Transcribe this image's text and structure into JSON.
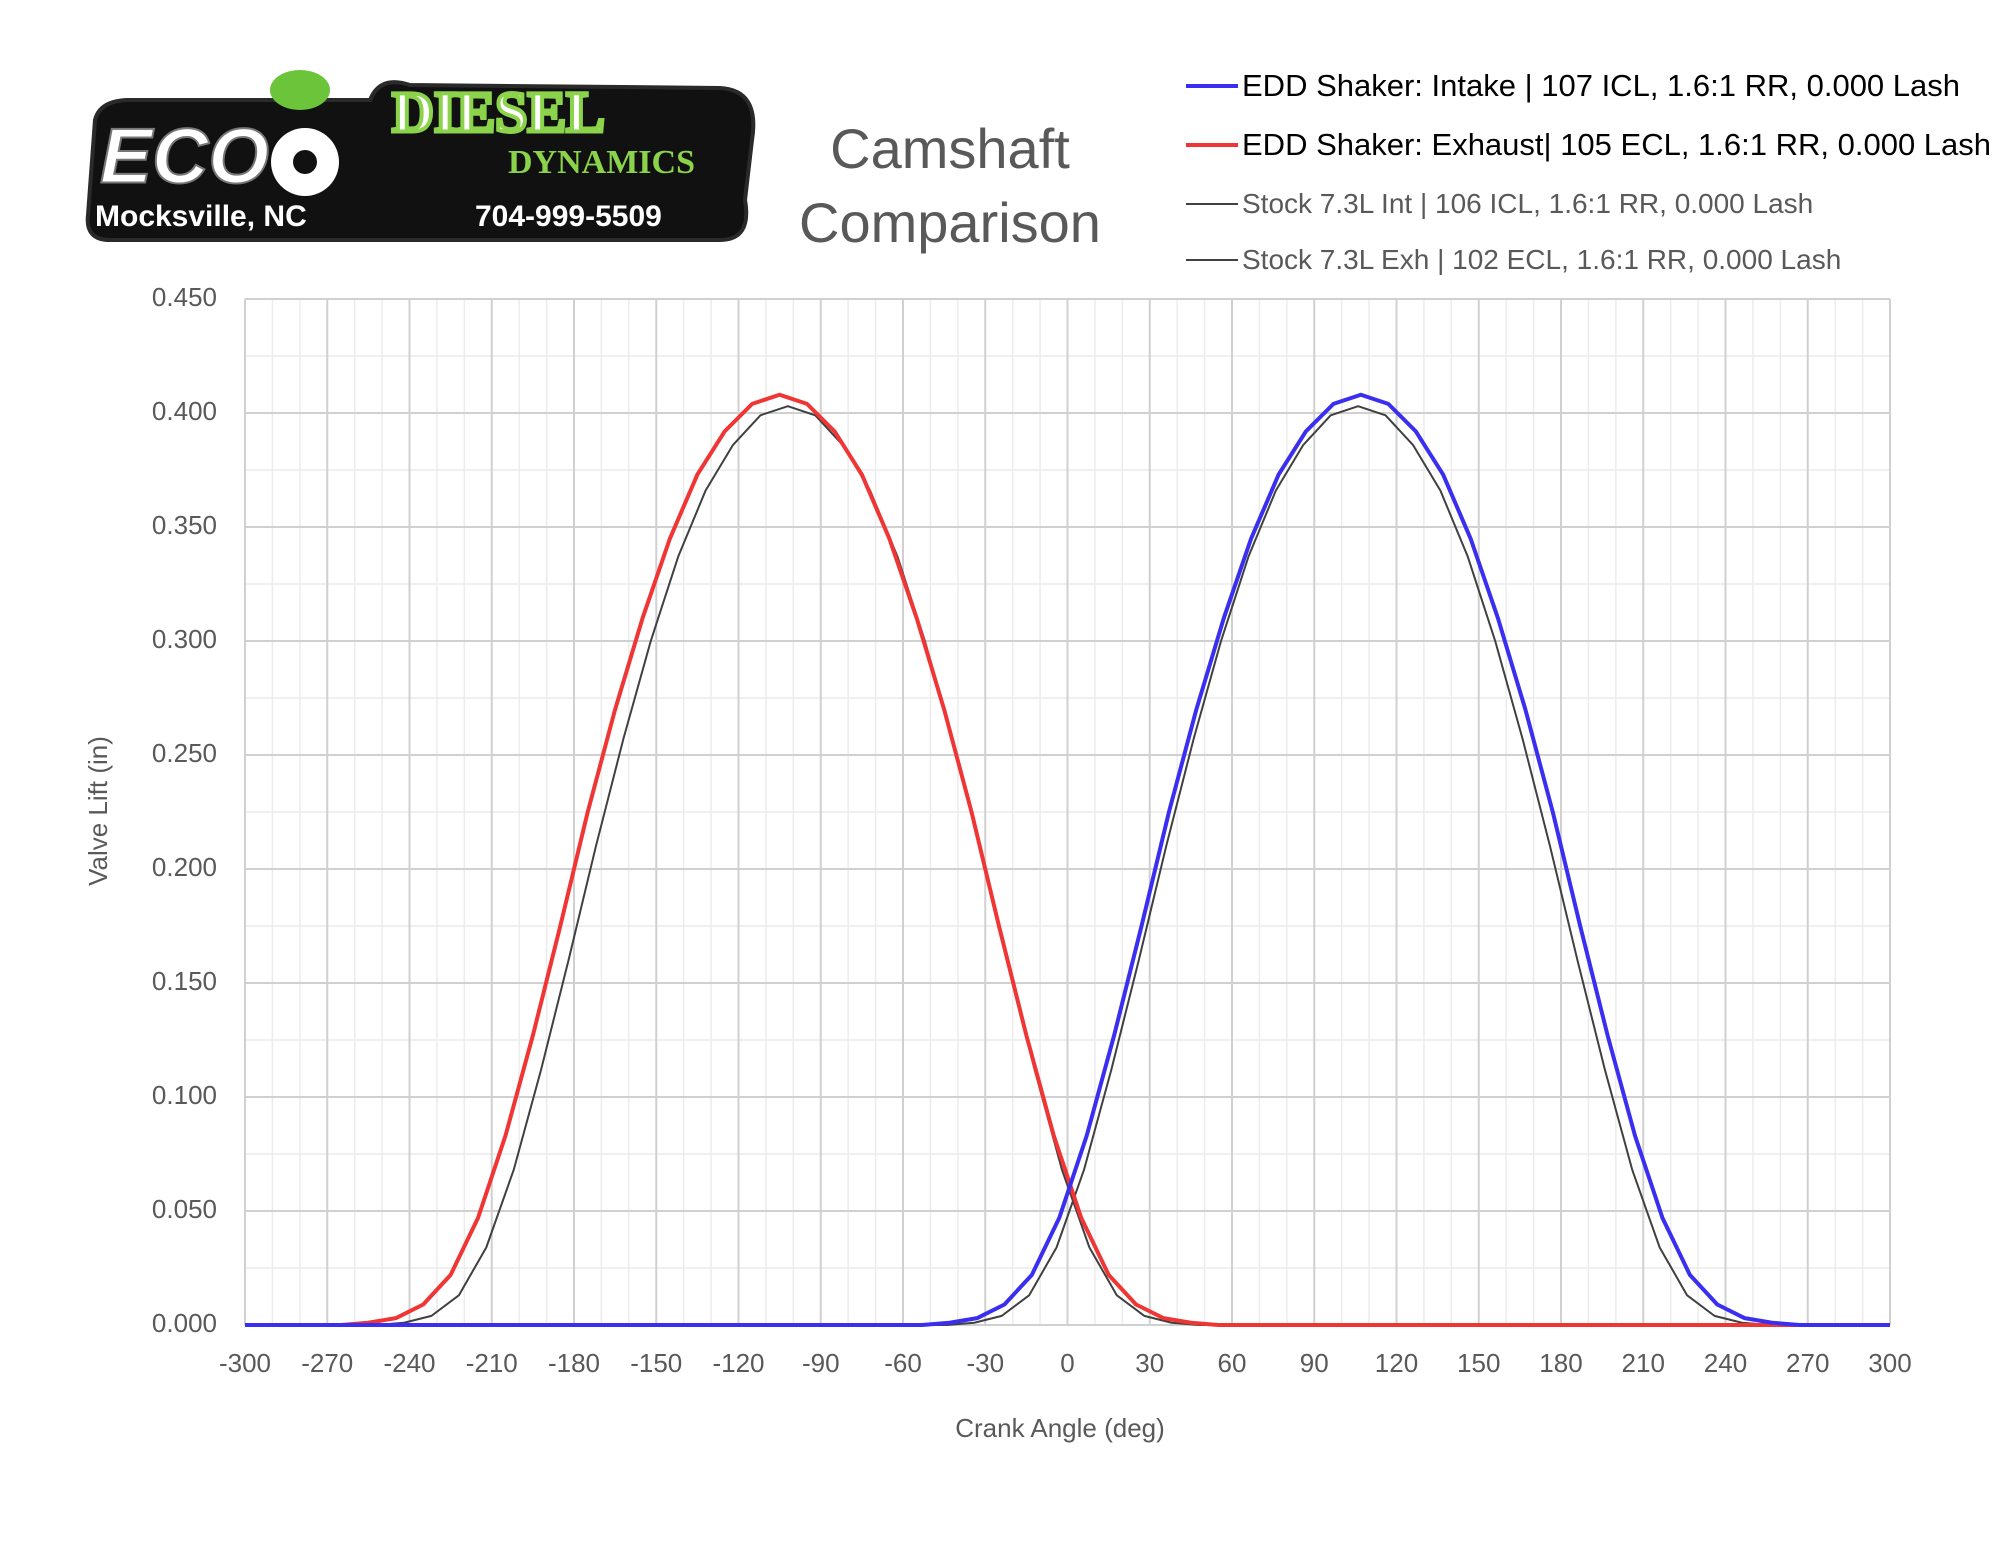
{
  "logo": {
    "brand": "ECO",
    "word1": "DIESEL",
    "word2": "DYNAMICS",
    "location": "Mocksville, NC",
    "phone": "704-999-5509"
  },
  "chart_data": {
    "type": "line",
    "title": "Camshaft Comparison",
    "xlabel": "Crank Angle (deg)",
    "ylabel": "Valve Lift (in)",
    "xlim": [
      -300,
      300
    ],
    "xticks": [
      -300,
      -270,
      -240,
      -210,
      -180,
      -150,
      -120,
      -90,
      -60,
      -30,
      0,
      30,
      60,
      90,
      120,
      150,
      180,
      210,
      240,
      270,
      300
    ],
    "ylim": [
      0,
      0.45
    ],
    "yticks": [
      {
        "value": 0,
        "label": "0.000"
      },
      {
        "value": 0.05,
        "label": "0.050"
      },
      {
        "value": 0.1,
        "label": "0.100"
      },
      {
        "value": 0.15,
        "label": "0.150"
      },
      {
        "value": 0.2,
        "label": "0.200"
      },
      {
        "value": 0.25,
        "label": "0.250"
      },
      {
        "value": 0.3,
        "label": "0.300"
      },
      {
        "value": 0.35,
        "label": "0.350"
      },
      {
        "value": 0.4,
        "label": "0.400"
      },
      {
        "value": 0.45,
        "label": "0.450"
      }
    ],
    "grid": true,
    "minor_grid": true,
    "legend": "top-right",
    "series": [
      {
        "name": "EDD Shaker: Intake | 107 ICL, 1.6:1 RR, 0.000 Lash",
        "color": "#3a2ff0",
        "line_width": 4,
        "x": [
          -300,
          -53,
          -43,
          -33,
          -23,
          -13,
          -3,
          7,
          17,
          27,
          37,
          47,
          57,
          67,
          77,
          87,
          97,
          107,
          117,
          127,
          137,
          147,
          157,
          167,
          177,
          187,
          197,
          207,
          217,
          227,
          237,
          247,
          257,
          267,
          300
        ],
        "values": [
          0,
          0,
          0.001,
          0.003,
          0.009,
          0.022,
          0.047,
          0.083,
          0.127,
          0.175,
          0.225,
          0.27,
          0.31,
          0.345,
          0.373,
          0.392,
          0.404,
          0.408,
          0.404,
          0.392,
          0.373,
          0.345,
          0.31,
          0.27,
          0.225,
          0.175,
          0.127,
          0.083,
          0.047,
          0.022,
          0.009,
          0.003,
          0.001,
          0,
          0
        ]
      },
      {
        "name": "EDD Shaker: Exhaust| 105 ECL, 1.6:1 RR, 0.000 Lash",
        "color": "#f03535",
        "line_width": 4,
        "x": [
          -300,
          -265,
          -255,
          -245,
          -235,
          -225,
          -215,
          -205,
          -195,
          -185,
          -175,
          -165,
          -155,
          -145,
          -135,
          -125,
          -115,
          -105,
          -95,
          -85,
          -75,
          -65,
          -55,
          -45,
          -35,
          -25,
          -15,
          -5,
          5,
          15,
          25,
          35,
          45,
          55,
          300
        ],
        "values": [
          0,
          0,
          0.001,
          0.003,
          0.009,
          0.022,
          0.047,
          0.083,
          0.127,
          0.175,
          0.225,
          0.27,
          0.31,
          0.345,
          0.373,
          0.392,
          0.404,
          0.408,
          0.404,
          0.392,
          0.373,
          0.345,
          0.31,
          0.27,
          0.225,
          0.175,
          0.127,
          0.083,
          0.047,
          0.022,
          0.009,
          0.003,
          0.001,
          0,
          0
        ]
      },
      {
        "name": "Stock 7.3L Int | 106 ICL, 1.6:1 RR, 0.000 Lash",
        "color": "#404040",
        "line_width": 2,
        "x": [
          -300,
          -54,
          -44,
          -34,
          -24,
          -14,
          -4,
          6,
          16,
          26,
          36,
          46,
          56,
          66,
          76,
          86,
          96,
          106,
          116,
          126,
          136,
          146,
          156,
          166,
          176,
          186,
          196,
          206,
          216,
          226,
          236,
          246,
          256,
          266,
          300
        ],
        "values": [
          0,
          0,
          0,
          0.001,
          0.004,
          0.013,
          0.034,
          0.068,
          0.112,
          0.16,
          0.21,
          0.257,
          0.3,
          0.337,
          0.366,
          0.386,
          0.399,
          0.403,
          0.399,
          0.386,
          0.366,
          0.337,
          0.3,
          0.257,
          0.21,
          0.16,
          0.112,
          0.068,
          0.034,
          0.013,
          0.004,
          0.001,
          0,
          0,
          0
        ]
      },
      {
        "name": "Stock 7.3L Exh | 102 ECL, 1.6:1 RR, 0.000 Lash",
        "color": "#404040",
        "line_width": 2,
        "x": [
          -300,
          -262,
          -252,
          -242,
          -232,
          -222,
          -212,
          -202,
          -192,
          -182,
          -172,
          -162,
          -152,
          -142,
          -132,
          -122,
          -112,
          -102,
          -92,
          -82,
          -72,
          -62,
          -52,
          -42,
          -32,
          -22,
          -12,
          -2,
          8,
          18,
          28,
          38,
          48,
          58,
          300
        ],
        "values": [
          0,
          0,
          0,
          0.001,
          0.004,
          0.013,
          0.034,
          0.068,
          0.112,
          0.16,
          0.21,
          0.257,
          0.3,
          0.337,
          0.366,
          0.386,
          0.399,
          0.403,
          0.399,
          0.386,
          0.366,
          0.337,
          0.3,
          0.257,
          0.21,
          0.16,
          0.112,
          0.068,
          0.034,
          0.013,
          0.004,
          0.001,
          0,
          0,
          0
        ]
      }
    ]
  }
}
